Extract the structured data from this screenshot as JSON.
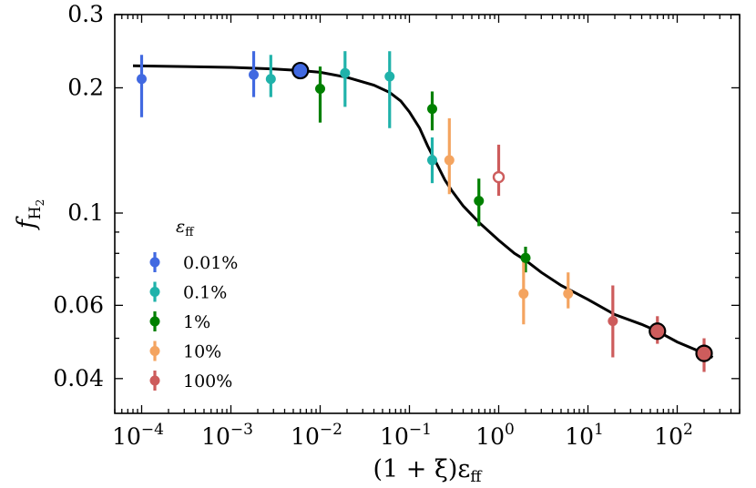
{
  "chart_data": {
    "type": "scatter",
    "xscale": "log",
    "yscale": "log",
    "xlim": [
      5e-05,
      500
    ],
    "ylim": [
      0.033,
      0.3
    ],
    "xlabel": "(1 + ξ)ε",
    "xlabel_sub": "ff",
    "ylabel": "f",
    "ylabel_sub": "H",
    "ylabel_subsub": "2",
    "x_ticks": [
      {
        "value": 0.0001,
        "base": "10",
        "exp": "−4"
      },
      {
        "value": 0.001,
        "base": "10",
        "exp": "−3"
      },
      {
        "value": 0.01,
        "base": "10",
        "exp": "−2"
      },
      {
        "value": 0.1,
        "base": "10",
        "exp": "−1"
      },
      {
        "value": 1,
        "base": "10",
        "exp": "0"
      },
      {
        "value": 10,
        "base": "10",
        "exp": "1"
      },
      {
        "value": 100,
        "base": "10",
        "exp": "2"
      }
    ],
    "y_ticks": [
      {
        "value": 0.04,
        "label": "0.04"
      },
      {
        "value": 0.06,
        "label": "0.06"
      },
      {
        "value": 0.1,
        "label": "0.1"
      },
      {
        "value": 0.2,
        "label": "0.2"
      },
      {
        "value": 0.3,
        "label": "0.3"
      }
    ],
    "legend": {
      "title": "ε",
      "title_sub": "ff",
      "position": "lower-left"
    },
    "series": [
      {
        "name": "0.01%",
        "color": "#4169e1",
        "points": [
          {
            "x": 0.0001,
            "y": 0.21,
            "yerr_lo": 0.17,
            "yerr_hi": 0.24
          },
          {
            "x": 0.0018,
            "y": 0.215,
            "yerr_lo": 0.19,
            "yerr_hi": 0.245
          }
        ]
      },
      {
        "name": "0.1%",
        "color": "#20b2aa",
        "points": [
          {
            "x": 0.0028,
            "y": 0.21,
            "yerr_lo": 0.19,
            "yerr_hi": 0.24
          },
          {
            "x": 0.019,
            "y": 0.217,
            "yerr_lo": 0.18,
            "yerr_hi": 0.245
          },
          {
            "x": 0.06,
            "y": 0.213,
            "yerr_lo": 0.16,
            "yerr_hi": 0.245
          },
          {
            "x": 0.18,
            "y": 0.134,
            "yerr_lo": 0.118,
            "yerr_hi": 0.152
          }
        ]
      },
      {
        "name": "1%",
        "color": "#008000",
        "points": [
          {
            "x": 0.01,
            "y": 0.199,
            "yerr_lo": 0.165,
            "yerr_hi": 0.225
          },
          {
            "x": 0.18,
            "y": 0.178,
            "yerr_lo": 0.158,
            "yerr_hi": 0.196
          },
          {
            "x": 0.6,
            "y": 0.107,
            "yerr_lo": 0.093,
            "yerr_hi": 0.121
          },
          {
            "x": 2.0,
            "y": 0.078,
            "yerr_lo": 0.072,
            "yerr_hi": 0.083
          }
        ]
      },
      {
        "name": "10%",
        "color": "#f4a460",
        "points": [
          {
            "x": 0.28,
            "y": 0.134,
            "yerr_lo": 0.111,
            "yerr_hi": 0.169
          },
          {
            "x": 1.9,
            "y": 0.064,
            "yerr_lo": 0.054,
            "yerr_hi": 0.079
          },
          {
            "x": 6.0,
            "y": 0.064,
            "yerr_lo": 0.059,
            "yerr_hi": 0.072
          }
        ]
      },
      {
        "name": "100%",
        "color": "#cd5c5c",
        "points": [
          {
            "x": 1.0,
            "y": 0.122,
            "yerr_lo": 0.11,
            "yerr_hi": 0.146,
            "hollow": true
          },
          {
            "x": 19,
            "y": 0.055,
            "yerr_lo": 0.045,
            "yerr_hi": 0.067
          },
          {
            "x": 60,
            "y": 0.052,
            "yerr_lo": 0.0485,
            "yerr_hi": 0.0565,
            "large": true
          },
          {
            "x": 200,
            "y": 0.046,
            "yerr_lo": 0.0415,
            "yerr_hi": 0.05,
            "large": true
          }
        ]
      }
    ],
    "highlight": [
      {
        "x": 0.006,
        "y": 0.22,
        "color": "#4169e1"
      }
    ],
    "fit_curve": {
      "color": "#000000",
      "points": [
        [
          8e-05,
          0.226
        ],
        [
          0.0003,
          0.225
        ],
        [
          0.001,
          0.224
        ],
        [
          0.003,
          0.222
        ],
        [
          0.006,
          0.22
        ],
        [
          0.01,
          0.218
        ],
        [
          0.02,
          0.212
        ],
        [
          0.04,
          0.203
        ],
        [
          0.06,
          0.195
        ],
        [
          0.08,
          0.186
        ],
        [
          0.1,
          0.175
        ],
        [
          0.13,
          0.16
        ],
        [
          0.16,
          0.145
        ],
        [
          0.2,
          0.132
        ],
        [
          0.25,
          0.12
        ],
        [
          0.3,
          0.113
        ],
        [
          0.4,
          0.104
        ],
        [
          0.6,
          0.095
        ],
        [
          1.0,
          0.086
        ],
        [
          1.5,
          0.08
        ],
        [
          2.0,
          0.077
        ],
        [
          3.0,
          0.072
        ],
        [
          5.0,
          0.067
        ],
        [
          10,
          0.062
        ],
        [
          20,
          0.057
        ],
        [
          40,
          0.054
        ],
        [
          60,
          0.052
        ],
        [
          100,
          0.049
        ],
        [
          200,
          0.046
        ],
        [
          250,
          0.045
        ]
      ]
    }
  }
}
